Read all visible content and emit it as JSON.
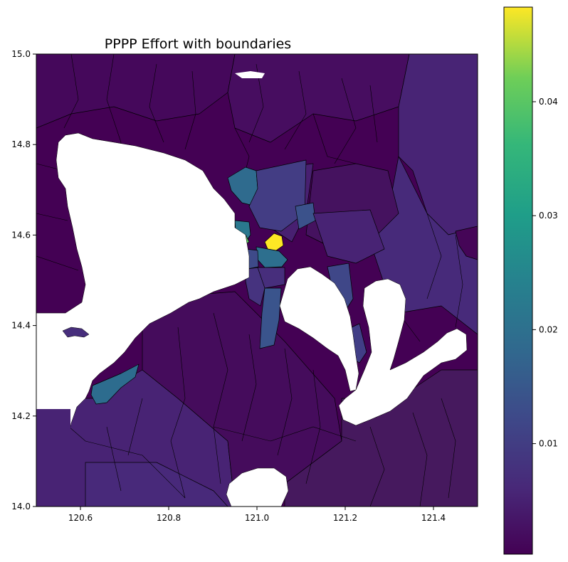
{
  "chart_data": {
    "type": "choropleth-map",
    "title": "PPPP Effort with boundaries",
    "xlim": [
      120.5,
      121.5
    ],
    "ylim": [
      14.0,
      15.0
    ],
    "x_ticks": [
      120.6,
      120.8,
      121.0,
      121.2,
      121.4
    ],
    "y_ticks": [
      14.0,
      14.2,
      14.4,
      14.6,
      14.8,
      15.0
    ],
    "colorbar": {
      "colormap": "viridis",
      "min": 0.0003,
      "max": 0.0483,
      "ticks": [
        0.01,
        0.02,
        0.03,
        0.04
      ]
    },
    "regions": [
      {
        "lon": 121.04,
        "lat": 14.59,
        "value": 0.048
      },
      {
        "lon": 120.97,
        "lat": 14.59,
        "value": 0.036
      },
      {
        "lon": 120.96,
        "lat": 14.62,
        "value": 0.024
      },
      {
        "lon": 121.01,
        "lat": 14.55,
        "value": 0.02
      },
      {
        "lon": 120.68,
        "lat": 14.26,
        "value": 0.02
      },
      {
        "lon": 120.96,
        "lat": 14.7,
        "value": 0.015
      },
      {
        "lon": 121.07,
        "lat": 14.64,
        "value": 0.012
      },
      {
        "lon": 121.12,
        "lat": 14.64,
        "value": 0.013
      },
      {
        "lon": 121.0,
        "lat": 14.4,
        "value": 0.012
      },
      {
        "lon": 121.15,
        "lat": 14.5,
        "value": 0.011
      },
      {
        "lon": 121.21,
        "lat": 14.32,
        "value": 0.01
      },
      {
        "lon": 121.05,
        "lat": 14.7,
        "value": 0.006
      },
      {
        "lon": 121.4,
        "lat": 14.75,
        "value": 0.005
      },
      {
        "lon": 121.3,
        "lat": 14.6,
        "value": 0.004
      },
      {
        "lon": 120.65,
        "lat": 14.12,
        "value": 0.004
      },
      {
        "lon": 120.8,
        "lat": 14.05,
        "value": 0.006
      },
      {
        "lon": 121.0,
        "lat": 14.15,
        "value": 0.003
      },
      {
        "lon": 121.35,
        "lat": 14.2,
        "value": 0.003
      },
      {
        "lon": 120.6,
        "lat": 14.9,
        "value": 0.002
      },
      {
        "lon": 121.2,
        "lat": 14.85,
        "value": 0.001
      }
    ]
  }
}
